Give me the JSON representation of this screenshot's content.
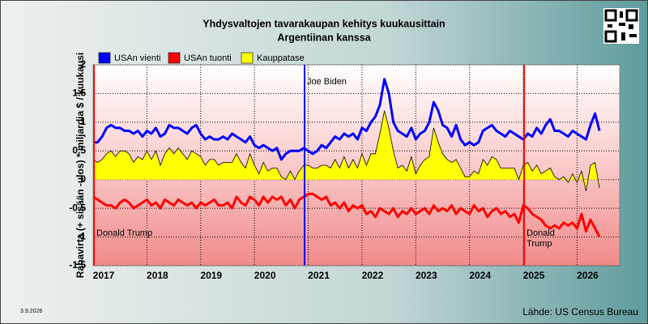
{
  "chart_data": {
    "type": "line",
    "title": "Yhdysvaltojen tavarakaupan kehitys kuukausittain",
    "subtitle": "Argentiinan kanssa",
    "ylabel": "Rahavirta (+ sisään -ulos) * miljardia $ / kuukausi",
    "source": "Lähde: US Census Bureau",
    "date": "3.9.2026",
    "categories": [
      "2017",
      null,
      null,
      null,
      null,
      null,
      null,
      null,
      null,
      null,
      null,
      null,
      "2018",
      null,
      null,
      null,
      null,
      null,
      null,
      null,
      null,
      null,
      null,
      null,
      "2019",
      null,
      null,
      null,
      null,
      null,
      null,
      null,
      null,
      null,
      null,
      null,
      "2020",
      null,
      null,
      null,
      null,
      null,
      null,
      null,
      null,
      null,
      null,
      null,
      "2021",
      null,
      null,
      null,
      null,
      null,
      null,
      null,
      null,
      null,
      null,
      null,
      "2022",
      null,
      null,
      null,
      null,
      null,
      null,
      null,
      null,
      null,
      null,
      null,
      "2023",
      null,
      null,
      null,
      null,
      null,
      null,
      null,
      null,
      null,
      null,
      null,
      "2024",
      null,
      null,
      null,
      null,
      null,
      null,
      null,
      null,
      null,
      null,
      null,
      "2025",
      null,
      null,
      null,
      null,
      null,
      null,
      null,
      null,
      null,
      null,
      null,
      "2026",
      null,
      null,
      null,
      null,
      null
    ],
    "series": [
      {
        "name": "USAn vienti",
        "color": "#0000ff",
        "style": "line",
        "values": [
          0.65,
          0.65,
          0.75,
          0.9,
          0.95,
          0.9,
          0.9,
          0.85,
          0.85,
          0.8,
          0.85,
          0.75,
          0.85,
          0.8,
          0.9,
          0.75,
          0.8,
          0.95,
          0.9,
          0.9,
          0.85,
          0.8,
          0.9,
          0.95,
          0.8,
          0.7,
          0.75,
          0.7,
          0.7,
          0.75,
          0.7,
          0.8,
          0.75,
          0.7,
          0.65,
          0.75,
          0.6,
          0.55,
          0.6,
          0.55,
          0.5,
          0.55,
          0.35,
          0.45,
          0.5,
          0.5,
          0.5,
          0.55,
          0.5,
          0.45,
          0.5,
          0.6,
          0.55,
          0.65,
          0.75,
          0.7,
          0.8,
          0.75,
          0.8,
          0.7,
          0.9,
          0.85,
          1.0,
          1.1,
          1.3,
          1.75,
          1.5,
          1.0,
          0.85,
          0.8,
          0.75,
          0.9,
          0.7,
          0.8,
          0.85,
          1.0,
          1.35,
          1.2,
          0.95,
          0.9,
          0.75,
          0.95,
          0.7,
          0.6,
          0.65,
          0.6,
          0.65,
          0.85,
          0.9,
          0.95,
          0.85,
          0.8,
          0.75,
          0.85,
          0.8,
          0.75,
          0.7,
          0.8,
          0.75,
          0.9,
          0.8,
          0.95,
          1.05,
          0.85,
          0.85,
          0.8,
          0.75,
          0.85,
          0.8,
          0.75,
          0.7,
          0.95,
          1.15,
          0.85
        ]
      },
      {
        "name": "USAn tuonti",
        "color": "#ff0000",
        "style": "line",
        "values": [
          -0.3,
          -0.35,
          -0.4,
          -0.45,
          -0.45,
          -0.5,
          -0.4,
          -0.35,
          -0.4,
          -0.5,
          -0.45,
          -0.4,
          -0.35,
          -0.45,
          -0.4,
          -0.5,
          -0.35,
          -0.4,
          -0.45,
          -0.35,
          -0.4,
          -0.45,
          -0.4,
          -0.5,
          -0.4,
          -0.45,
          -0.4,
          -0.35,
          -0.45,
          -0.45,
          -0.4,
          -0.5,
          -0.3,
          -0.4,
          -0.45,
          -0.3,
          -0.35,
          -0.45,
          -0.3,
          -0.4,
          -0.3,
          -0.35,
          -0.3,
          -0.45,
          -0.35,
          -0.5,
          -0.35,
          -0.3,
          -0.25,
          -0.25,
          -0.3,
          -0.35,
          -0.3,
          -0.45,
          -0.4,
          -0.5,
          -0.4,
          -0.55,
          -0.45,
          -0.5,
          -0.45,
          -0.6,
          -0.55,
          -0.65,
          -0.5,
          -0.55,
          -0.6,
          -0.5,
          -0.65,
          -0.55,
          -0.6,
          -0.5,
          -0.6,
          -0.55,
          -0.5,
          -0.6,
          -0.45,
          -0.55,
          -0.5,
          -0.55,
          -0.45,
          -0.6,
          -0.5,
          -0.55,
          -0.6,
          -0.45,
          -0.55,
          -0.5,
          -0.65,
          -0.55,
          -0.5,
          -0.6,
          -0.55,
          -0.65,
          -0.6,
          -0.75,
          -0.45,
          -0.5,
          -0.6,
          -0.65,
          -0.7,
          -0.8,
          -0.85,
          -0.8,
          -0.85,
          -0.75,
          -0.8,
          -0.75,
          -0.85,
          -0.6,
          -0.9,
          -0.7,
          -0.85,
          -1.0
        ]
      },
      {
        "name": "Kauppatase",
        "color": "#ffff00",
        "style": "area",
        "values": [
          0.35,
          0.3,
          0.35,
          0.45,
          0.5,
          0.4,
          0.5,
          0.5,
          0.45,
          0.3,
          0.4,
          0.35,
          0.5,
          0.35,
          0.5,
          0.25,
          0.45,
          0.55,
          0.45,
          0.55,
          0.45,
          0.35,
          0.5,
          0.45,
          0.4,
          0.25,
          0.35,
          0.35,
          0.25,
          0.3,
          0.3,
          0.3,
          0.45,
          0.3,
          0.2,
          0.45,
          0.25,
          0.1,
          0.3,
          0.15,
          0.2,
          0.2,
          0.05,
          0,
          0.15,
          0,
          0.15,
          0.25,
          0.25,
          0.2,
          0.2,
          0.25,
          0.25,
          0.2,
          0.35,
          0.2,
          0.4,
          0.2,
          0.35,
          0.2,
          0.45,
          0.25,
          0.45,
          0.45,
          0.8,
          1.2,
          0.9,
          0.5,
          0.2,
          0.25,
          0.15,
          0.4,
          0.1,
          0.25,
          0.35,
          0.4,
          0.9,
          0.65,
          0.45,
          0.35,
          0.3,
          0.35,
          0.2,
          0.05,
          0.05,
          0.15,
          0.1,
          0.35,
          0.25,
          0.4,
          0.35,
          0.2,
          0.2,
          0.2,
          0.2,
          0,
          0.25,
          0.3,
          0.15,
          0.25,
          0.1,
          0.15,
          0.2,
          0.05,
          0,
          0.05,
          -0.05,
          0.1,
          -0.05,
          0.15,
          -0.2,
          0.25,
          0.3,
          -0.15
        ]
      }
    ],
    "events": [
      {
        "label": "Donald Trump",
        "position": 0,
        "color": "#ff0000",
        "wrap": false,
        "side": "bottom"
      },
      {
        "label": "Joe Biden",
        "position": 47,
        "color": "#0000ff",
        "wrap": false,
        "side": "top"
      },
      {
        "label": "Donald Trump",
        "position": 96,
        "color": "#ff0000",
        "wrap": true,
        "side": "bottom"
      }
    ],
    "ylim": [
      -1.5,
      2
    ],
    "yticks": [
      -1.5,
      -1,
      -0.5,
      0,
      0.5,
      1,
      1.5,
      2
    ],
    "grid": true
  }
}
